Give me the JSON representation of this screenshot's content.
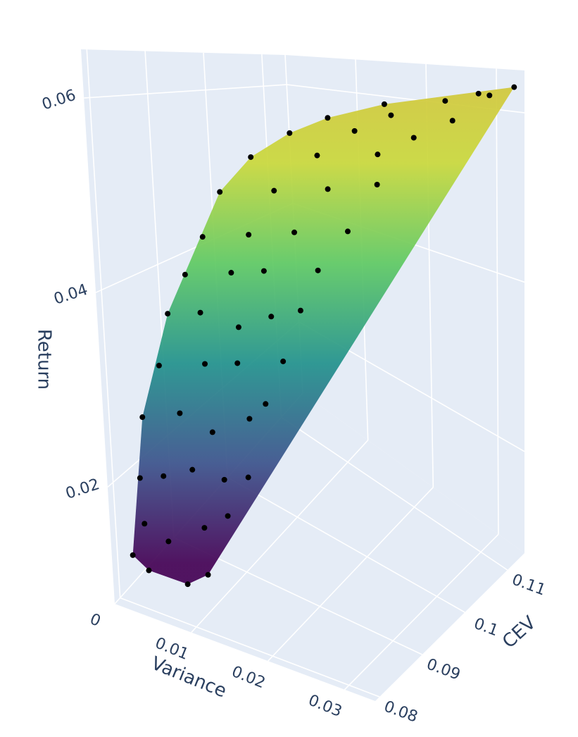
{
  "chart_data": {
    "type": "scatter3d",
    "x_label": "Variance",
    "y_label": "CEV",
    "z_label": "Return",
    "xlim": [
      0,
      0.034
    ],
    "ylim": [
      0.079,
      0.114
    ],
    "zlim": [
      0.008,
      0.065
    ],
    "xticks": [
      0,
      0.01,
      0.02,
      0.03
    ],
    "yticks": [
      0.08,
      0.09,
      0.1,
      0.11
    ],
    "zticks": [
      0.02,
      0.04,
      0.06
    ],
    "grid": true,
    "marker_color": "#000000",
    "surface_colors": [
      "#440154",
      "#3b528b",
      "#21918c",
      "#5ec962",
      "#c9d83a",
      "#d4c23a"
    ],
    "x": [
      0.002,
      0.004,
      0.009,
      0.011,
      0.003,
      0.006,
      0.01,
      0.013,
      0.002,
      0.005,
      0.008,
      0.012,
      0.015,
      0.002,
      0.006,
      0.01,
      0.014,
      0.016,
      0.003,
      0.008,
      0.012,
      0.017,
      0.003,
      0.007,
      0.011,
      0.015,
      0.018,
      0.004,
      0.009,
      0.013,
      0.019,
      0.005,
      0.01,
      0.015,
      0.021,
      0.006,
      0.012,
      0.018,
      0.023,
      0.008,
      0.015,
      0.022,
      0.011,
      0.018,
      0.025,
      0.014,
      0.021,
      0.028,
      0.019,
      0.026,
      0.031,
      0.029,
      0.033
    ],
    "y": [
      0.08,
      0.08,
      0.08,
      0.081,
      0.081,
      0.081,
      0.082,
      0.082,
      0.082,
      0.082,
      0.083,
      0.083,
      0.083,
      0.083,
      0.084,
      0.084,
      0.085,
      0.085,
      0.085,
      0.086,
      0.086,
      0.087,
      0.087,
      0.087,
      0.088,
      0.088,
      0.089,
      0.089,
      0.09,
      0.09,
      0.091,
      0.091,
      0.092,
      0.093,
      0.094,
      0.093,
      0.094,
      0.095,
      0.097,
      0.096,
      0.098,
      0.099,
      0.099,
      0.101,
      0.102,
      0.102,
      0.104,
      0.106,
      0.106,
      0.108,
      0.11,
      0.111,
      0.113
    ],
    "z": [
      0.013,
      0.012,
      0.012,
      0.013,
      0.016,
      0.015,
      0.017,
      0.019,
      0.02,
      0.021,
      0.022,
      0.022,
      0.023,
      0.026,
      0.027,
      0.026,
      0.028,
      0.03,
      0.031,
      0.032,
      0.033,
      0.034,
      0.036,
      0.037,
      0.036,
      0.038,
      0.039,
      0.04,
      0.041,
      0.042,
      0.043,
      0.044,
      0.045,
      0.046,
      0.047,
      0.049,
      0.05,
      0.051,
      0.052,
      0.053,
      0.054,
      0.055,
      0.056,
      0.057,
      0.057,
      0.058,
      0.059,
      0.059,
      0.06,
      0.061,
      0.062,
      0.062,
      0.063
    ]
  }
}
